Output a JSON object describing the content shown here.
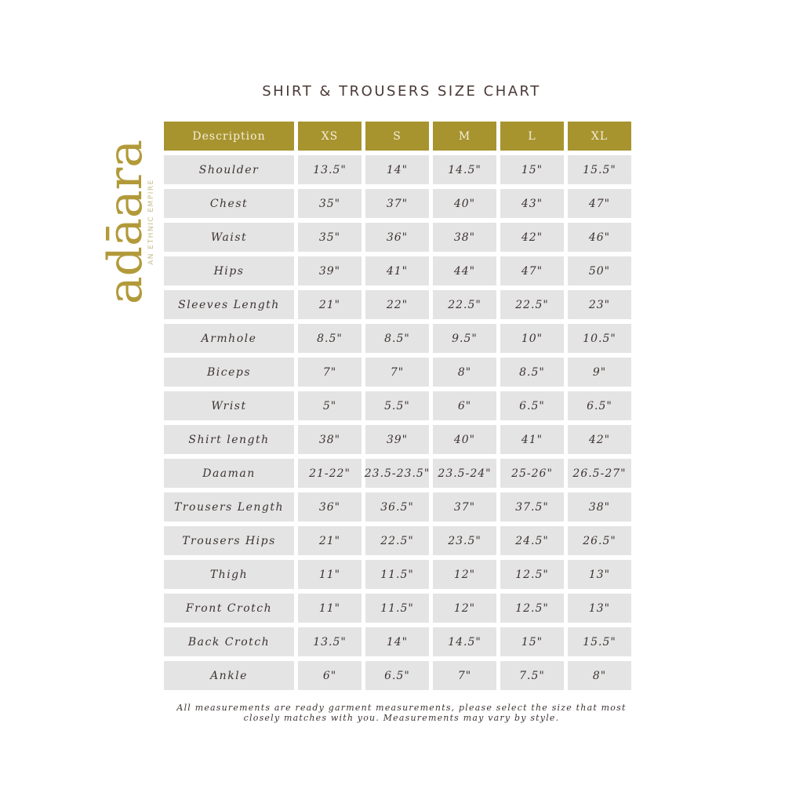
{
  "title": "SHIRT & TROUSERS SIZE CHART",
  "logo": {
    "text": "adāara",
    "tagline": "AN ETHNIC EMPIRE",
    "color": "#b29a3a"
  },
  "header_color": "#a8942f",
  "columns": [
    "Description",
    "XS",
    "S",
    "M",
    "L",
    "XL"
  ],
  "rows": [
    {
      "label": "Shoulder",
      "values": [
        "13.5\"",
        "14\"",
        "14.5\"",
        "15\"",
        "15.5\""
      ]
    },
    {
      "label": "Chest",
      "values": [
        "35\"",
        "37\"",
        "40\"",
        "43\"",
        "47\""
      ]
    },
    {
      "label": "Waist",
      "values": [
        "35\"",
        "36\"",
        "38\"",
        "42\"",
        "46\""
      ]
    },
    {
      "label": "Hips",
      "values": [
        "39\"",
        "41\"",
        "44\"",
        "47\"",
        "50\""
      ]
    },
    {
      "label": "Sleeves Length",
      "values": [
        "21\"",
        "22\"",
        "22.5\"",
        "22.5\"",
        "23\""
      ]
    },
    {
      "label": "Armhole",
      "values": [
        "8.5\"",
        "8.5\"",
        "9.5\"",
        "10\"",
        "10.5\""
      ]
    },
    {
      "label": "Biceps",
      "values": [
        "7\"",
        "7\"",
        "8\"",
        "8.5\"",
        "9\""
      ]
    },
    {
      "label": "Wrist",
      "values": [
        "5\"",
        "5.5\"",
        "6\"",
        "6.5\"",
        "6.5\""
      ]
    },
    {
      "label": "Shirt length",
      "values": [
        "38\"",
        "39\"",
        "40\"",
        "41\"",
        "42\""
      ]
    },
    {
      "label": "Daaman",
      "values": [
        "21-22\"",
        "23.5-23.5\"",
        "23.5-24\"",
        "25-26\"",
        "26.5-27\""
      ]
    },
    {
      "label": "Trousers Length",
      "values": [
        "36\"",
        "36.5\"",
        "37\"",
        "37.5\"",
        "38\""
      ]
    },
    {
      "label": "Trousers Hips",
      "values": [
        "21\"",
        "22.5\"",
        "23.5\"",
        "24.5\"",
        "26.5\""
      ]
    },
    {
      "label": "Thigh",
      "values": [
        "11\"",
        "11.5\"",
        "12\"",
        "12.5\"",
        "13\""
      ]
    },
    {
      "label": "Front Crotch",
      "values": [
        "11\"",
        "11.5\"",
        "12\"",
        "12.5\"",
        "13\""
      ]
    },
    {
      "label": "Back Crotch",
      "values": [
        "13.5\"",
        "14\"",
        "14.5\"",
        "15\"",
        "15.5\""
      ]
    },
    {
      "label": "Ankle",
      "values": [
        "6\"",
        "6.5\"",
        "7\"",
        "7.5\"",
        "8\""
      ]
    }
  ],
  "note": {
    "line1": "All measurements are ready garment measurements, please select the size that most",
    "line2": "closely matches with you. Measurements may vary by style."
  }
}
